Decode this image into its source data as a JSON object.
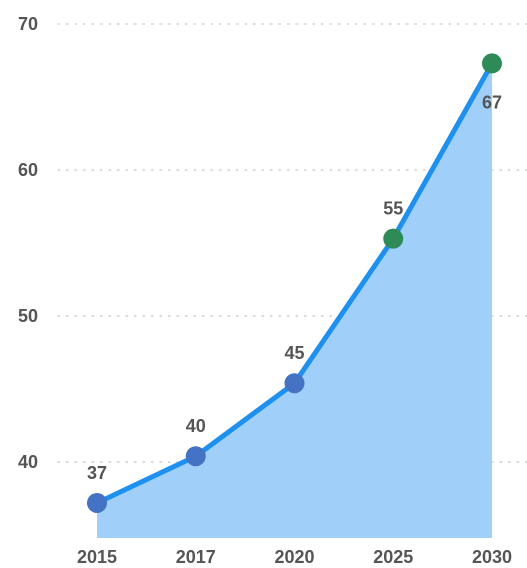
{
  "chart_data": {
    "type": "area",
    "title": "",
    "xlabel": "",
    "ylabel": "",
    "categories": [
      "2015",
      "2017",
      "2020",
      "2025",
      "2030"
    ],
    "series": [
      {
        "values": [
          37.2,
          40.4,
          45.4,
          55.3,
          67.3
        ]
      }
    ],
    "data_labels": [
      "37",
      "40",
      "45",
      "55",
      "67"
    ],
    "y_ticks": [
      40,
      50,
      60,
      70
    ],
    "ylim": [
      34.8,
      70
    ],
    "grid": "horizontal dotted",
    "colors": {
      "line": "#1e90f0",
      "area": "#a0cffa",
      "marker_default": "#4472c4",
      "marker_highlight": "#2e8b57",
      "grid": "#c8c8c8",
      "text": "#555555"
    },
    "highlighted_points": [
      3,
      4
    ]
  }
}
